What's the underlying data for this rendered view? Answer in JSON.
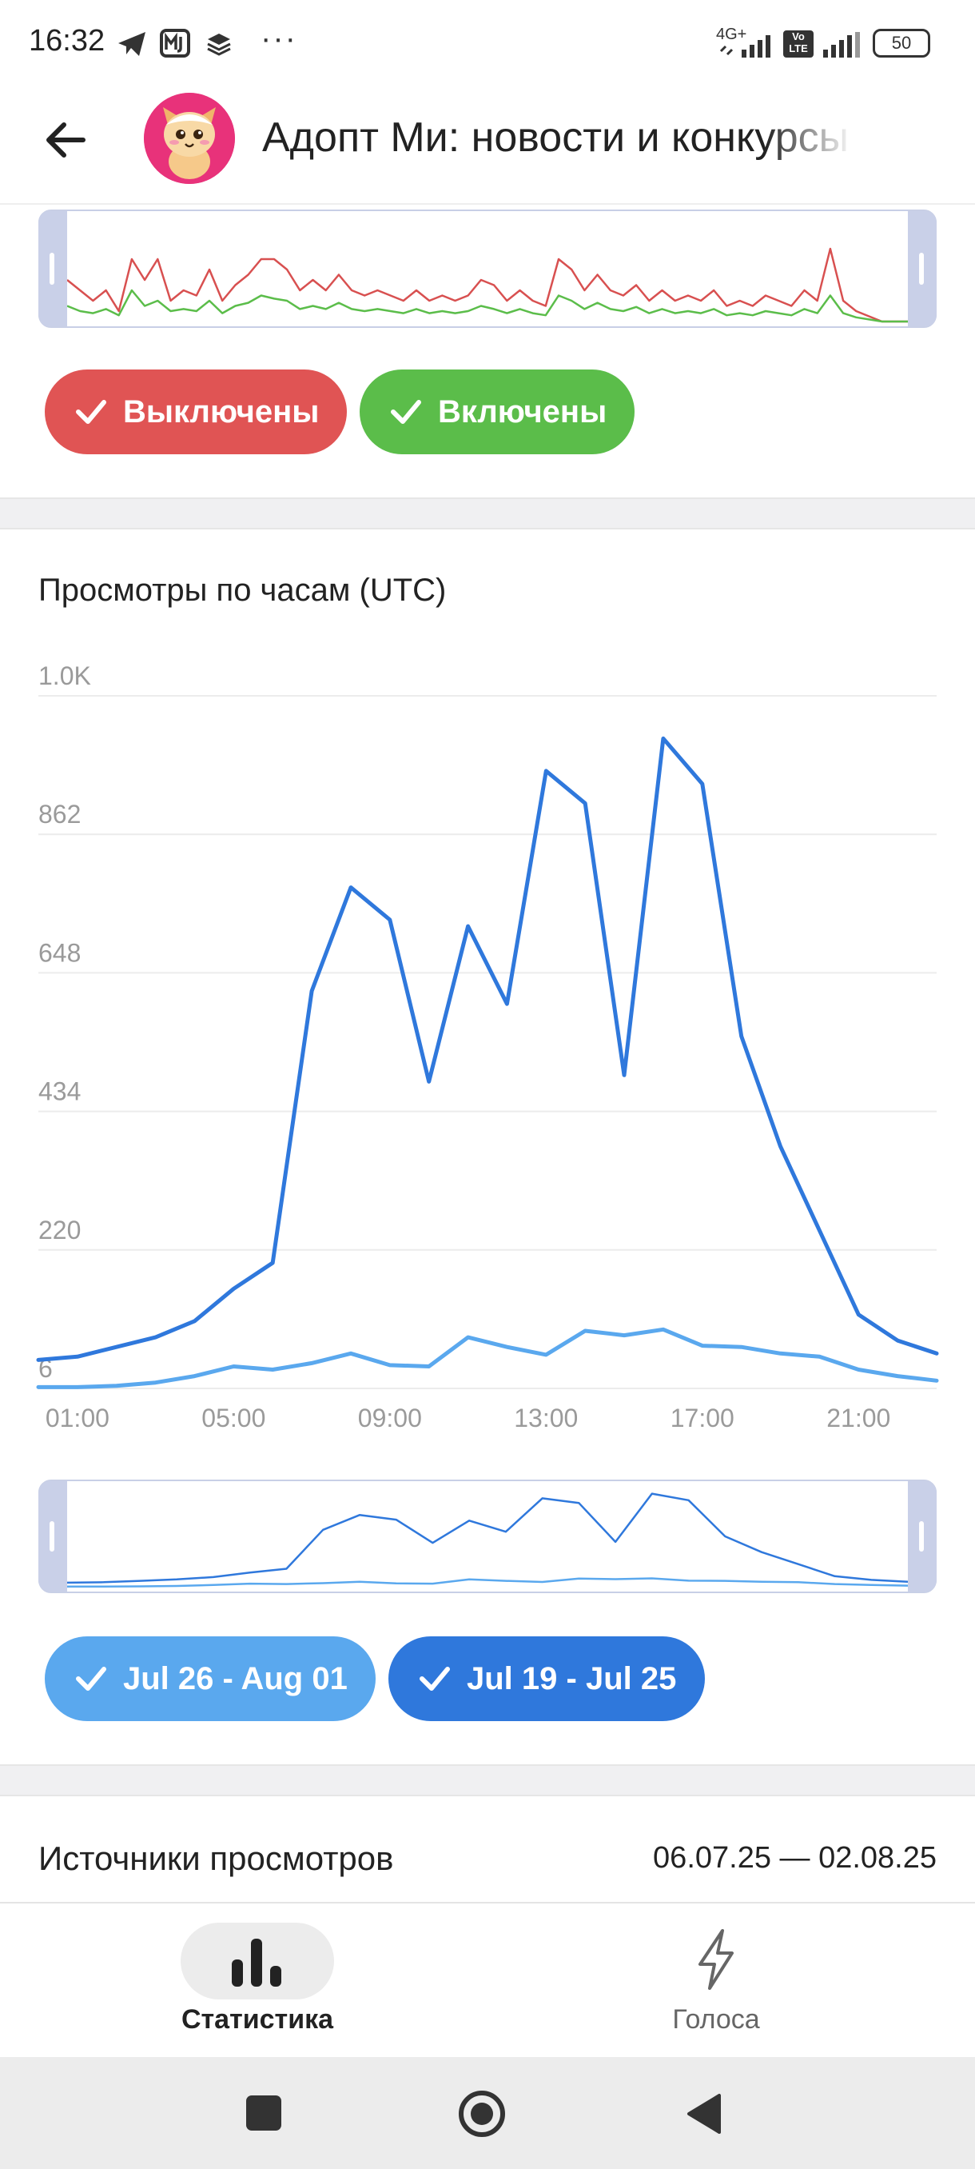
{
  "status_bar": {
    "time": "16:32",
    "network": "4G+",
    "volte": "Vo LTE",
    "battery": "50",
    "more": "···",
    "icons": [
      "telegram-icon",
      "mj-icon",
      "layers-icon",
      "signal-icon",
      "battery-icon"
    ]
  },
  "header": {
    "title": "Адопт Ми: новости и конкурсы",
    "back_icon": "arrow-left-icon",
    "avatar_icon": "cat-mascot-avatar"
  },
  "toggle_chart": {
    "buttons": [
      {
        "label": "Выключены",
        "color": "#e05454"
      },
      {
        "label": "Включены",
        "color": "#5bbd4a"
      }
    ],
    "chart_data": {
      "type": "line",
      "series": [
        {
          "name": "Выключены",
          "color": "#d85050",
          "values": [
            40,
            30,
            20,
            30,
            10,
            60,
            40,
            60,
            20,
            30,
            25,
            50,
            20,
            35,
            45,
            60,
            60,
            50,
            30,
            40,
            30,
            45,
            30,
            25,
            30,
            25,
            20,
            30,
            20,
            25,
            20,
            25,
            40,
            35,
            20,
            30,
            20,
            15,
            60,
            50,
            30,
            45,
            30,
            25,
            35,
            20,
            30,
            20,
            25,
            20,
            30,
            15,
            20,
            15,
            25,
            20,
            15,
            30,
            20,
            70,
            20,
            10,
            5,
            0,
            0,
            0
          ]
        },
        {
          "name": "Включены",
          "color": "#5bbd4a",
          "values": [
            15,
            10,
            8,
            12,
            6,
            30,
            15,
            20,
            10,
            12,
            10,
            20,
            8,
            15,
            18,
            25,
            22,
            20,
            12,
            15,
            12,
            18,
            12,
            10,
            12,
            10,
            8,
            12,
            8,
            10,
            8,
            10,
            15,
            12,
            8,
            12,
            8,
            6,
            25,
            20,
            12,
            18,
            12,
            10,
            14,
            8,
            12,
            8,
            10,
            8,
            12,
            6,
            8,
            6,
            10,
            8,
            6,
            12,
            8,
            25,
            8,
            4,
            2,
            0,
            0,
            0
          ]
        }
      ]
    }
  },
  "hourly_chart": {
    "title": "Просмотры по часам (UTC)",
    "chart_data": {
      "type": "line",
      "x": [
        "00:00",
        "01:00",
        "02:00",
        "03:00",
        "04:00",
        "05:00",
        "06:00",
        "07:00",
        "08:00",
        "09:00",
        "10:00",
        "11:00",
        "12:00",
        "13:00",
        "14:00",
        "15:00",
        "16:00",
        "17:00",
        "18:00",
        "19:00",
        "20:00",
        "21:00",
        "22:00",
        "23:00"
      ],
      "x_tick_labels": [
        "01:00",
        "05:00",
        "09:00",
        "13:00",
        "17:00",
        "21:00"
      ],
      "y_tick_labels": [
        "1.0K",
        "862",
        "648",
        "434",
        "220",
        "6"
      ],
      "y_ticks": [
        1076,
        862,
        648,
        434,
        220,
        6
      ],
      "ylim": [
        6,
        1076
      ],
      "grid": true,
      "series": [
        {
          "name": "Jul 19 - Jul 25",
          "color": "#2f78dc",
          "values": [
            50,
            55,
            70,
            85,
            110,
            160,
            200,
            620,
            780,
            730,
            480,
            720,
            600,
            960,
            910,
            490,
            1010,
            940,
            550,
            380,
            250,
            120,
            80,
            60
          ]
        },
        {
          "name": "Jul 26 - Aug 01",
          "color": "#5aa8ee",
          "values": [
            8,
            8,
            10,
            15,
            25,
            40,
            35,
            45,
            60,
            42,
            40,
            85,
            70,
            58,
            95,
            88,
            97,
            72,
            70,
            60,
            55,
            35,
            25,
            18
          ]
        }
      ]
    },
    "legend_buttons": [
      {
        "label": "Jul 26 - Aug 01",
        "color": "#5aa8ee"
      },
      {
        "label": "Jul 19 - Jul 25",
        "color": "#2f78dc"
      }
    ]
  },
  "sources": {
    "title": "Источники просмотров",
    "date_range": "06.07.25 — 02.08.25"
  },
  "bottom_nav": {
    "items": [
      {
        "label": "Статистика",
        "icon": "bar-chart-icon",
        "active": true
      },
      {
        "label": "Голоса",
        "icon": "lightning-icon",
        "active": false
      }
    ]
  },
  "system_nav": {
    "icons": [
      "square-icon",
      "circle-home-icon",
      "triangle-back-icon"
    ]
  }
}
